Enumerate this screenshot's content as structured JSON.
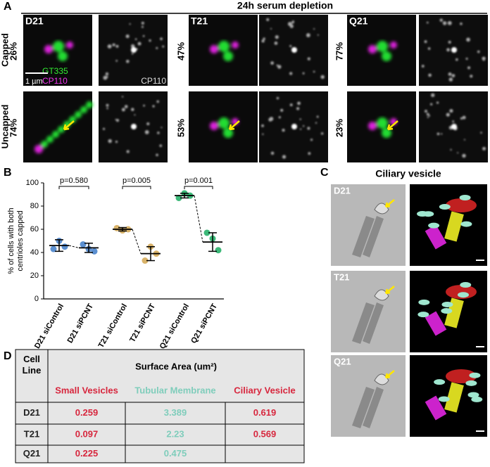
{
  "panel_a": {
    "letter": "A",
    "heading": "24h serum depletion",
    "lines": [
      "D21",
      "T21",
      "Q21"
    ],
    "rows": [
      "Capped",
      "Uncapped"
    ],
    "percents": [
      [
        "26%",
        "47%",
        "77%"
      ],
      [
        "74%",
        "53%",
        "23%"
      ]
    ],
    "stain_green": "GT335",
    "stain_magenta": "CP110",
    "stain_gray": "CP110",
    "scale": "1 µm"
  },
  "chart_data": {
    "type": "dotplot",
    "letter": "B",
    "ylabel": [
      "% of cells with both",
      "centrioles capped"
    ],
    "categories": [
      "D21 siControl",
      "D21 siPCNT",
      "T21 siControl",
      "T21 siPCNT",
      "Q21 siControl",
      "Q21 siPCNT"
    ],
    "colors": [
      "#5b8fd0",
      "#5b8fd0",
      "#d9b36a",
      "#d9b36a",
      "#3cb878",
      "#3cb878"
    ],
    "points": [
      [
        43,
        50,
        45
      ],
      [
        47,
        43,
        41
      ],
      [
        61,
        59,
        60
      ],
      [
        33,
        45,
        39
      ],
      [
        87,
        91,
        89
      ],
      [
        57,
        52,
        42
      ]
    ],
    "means": [
      46,
      44,
      60,
      39,
      89,
      49
    ],
    "errors": [
      5,
      4,
      1.5,
      6,
      2,
      8
    ],
    "p_values": [
      "p=0.580",
      "p=0.005",
      "p=0.001"
    ],
    "ylim": [
      0,
      100
    ],
    "yticks": [
      0,
      20,
      40,
      60,
      80,
      100
    ]
  },
  "panel_c": {
    "letter": "C",
    "title": "Ciliary vesicle",
    "lines": [
      "D21",
      "T21",
      "Q21"
    ]
  },
  "table": {
    "letter": "D",
    "corner": "Cell Line",
    "heading": "Surface Area (um²)",
    "columns": [
      "Small Vesicles",
      "Tubular Membrane",
      "Ciliary Vesicle"
    ],
    "rows": [
      [
        "D21",
        "0.259",
        "3.389",
        "0.619"
      ],
      [
        "T21",
        "0.097",
        "2.23",
        "0.569"
      ],
      [
        "Q21",
        "0.225",
        "0.475",
        null
      ]
    ]
  }
}
